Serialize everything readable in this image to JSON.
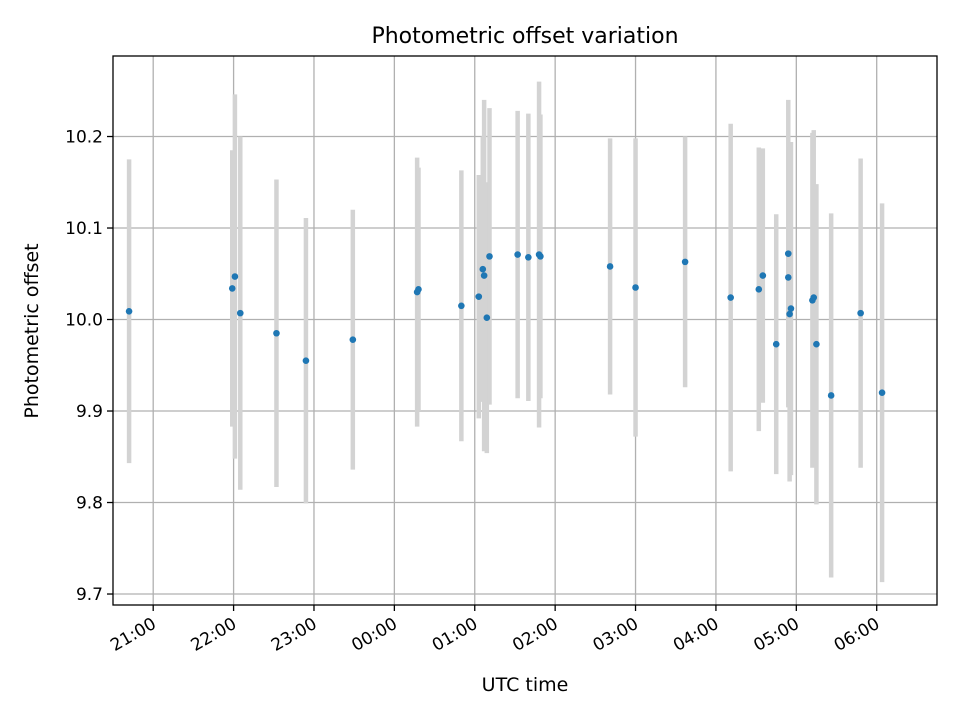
{
  "chart_data": {
    "type": "scatter",
    "title": "Photometric offset variation",
    "xlabel": "UTC time",
    "ylabel": "Photometric offset",
    "x_ticks": [
      "21:00",
      "22:00",
      "23:00",
      "00:00",
      "01:00",
      "02:00",
      "03:00",
      "04:00",
      "05:00",
      "06:00"
    ],
    "y_ticks": [
      "9.7",
      "9.8",
      "9.9",
      "10.0",
      "10.1",
      "10.2"
    ],
    "ylim": [
      9.688,
      10.288
    ],
    "xlim": [
      "20:30",
      "06:45"
    ],
    "grid": true,
    "colors": {
      "points": "#1f77b4",
      "errorbars": "#d3d3d3",
      "grid": "#b0b0b0"
    },
    "series": [
      {
        "x": [
          "20:42",
          "21:59",
          "22:01",
          "22:05",
          "22:32",
          "22:54",
          "23:29",
          "00:17",
          "00:18",
          "00:50",
          "01:03",
          "01:06",
          "01:07",
          "01:09",
          "01:11",
          "01:32",
          "01:40",
          "01:48",
          "01:49",
          "02:41",
          "03:00",
          "03:37",
          "04:11",
          "04:32",
          "04:35",
          "04:45",
          "04:54",
          "04:54",
          "04:55",
          "04:56",
          "05:12",
          "05:13",
          "05:15",
          "05:26",
          "05:48",
          "06:04"
        ],
        "y": [
          10.009,
          10.034,
          10.047,
          10.007,
          9.985,
          9.955,
          9.978,
          10.03,
          10.033,
          10.015,
          10.025,
          10.055,
          10.048,
          10.002,
          10.069,
          10.071,
          10.068,
          10.071,
          10.069,
          10.058,
          10.035,
          10.063,
          10.024,
          10.033,
          10.048,
          9.973,
          10.072,
          10.046,
          10.006,
          10.012,
          10.021,
          10.024,
          9.973,
          9.917,
          10.007,
          9.92
        ],
        "err": [
          0.166,
          0.151,
          0.199,
          0.193,
          0.168,
          0.156,
          0.142,
          0.147,
          0.133,
          0.148,
          0.133,
          0.145,
          0.192,
          0.148,
          0.162,
          0.157,
          0.157,
          0.189,
          0.155,
          0.14,
          0.163,
          0.137,
          0.19,
          0.155,
          0.139,
          0.142,
          0.168,
          0.14,
          0.183,
          0.182,
          0.183,
          0.183,
          0.175,
          0.199,
          0.169,
          0.207
        ]
      }
    ]
  }
}
